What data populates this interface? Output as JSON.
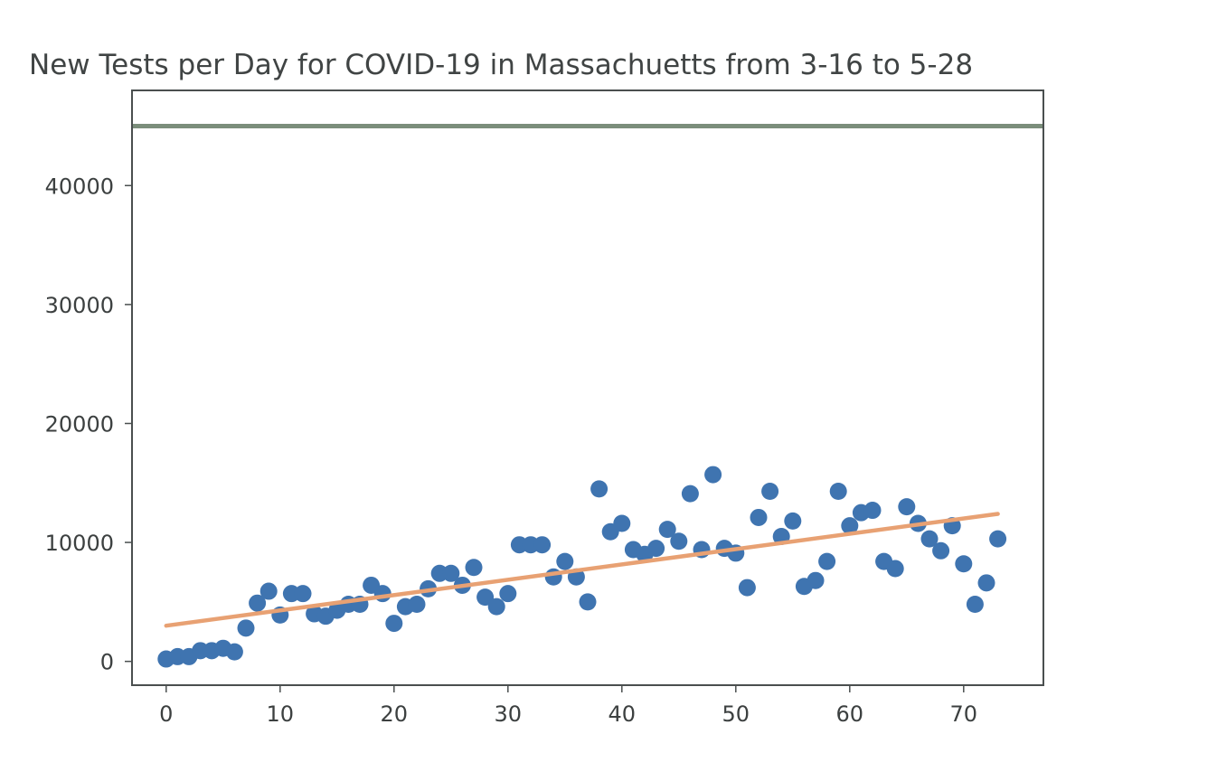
{
  "chart_data": {
    "type": "scatter",
    "title": "New Tests per Day for COVID-19 in Massachuetts from 3-16 to 5-28",
    "xlabel": "",
    "ylabel": "",
    "xlim": [
      -3,
      77
    ],
    "ylim": [
      -2000,
      48000
    ],
    "xticks": [
      0,
      10,
      20,
      30,
      40,
      50,
      60,
      70
    ],
    "yticks": [
      0,
      10000,
      20000,
      30000,
      40000
    ],
    "xtick_labels": [
      "0",
      "10",
      "20",
      "30",
      "40",
      "50",
      "60",
      "70"
    ],
    "ytick_labels": [
      "0",
      "10000",
      "20000",
      "30000",
      "40000"
    ],
    "grid": false,
    "reference_line": {
      "y": 45000,
      "color": "#7b8e7b"
    },
    "series": [
      {
        "type": "scatter",
        "color": "#3f74b0",
        "x": [
          0,
          1,
          2,
          3,
          4,
          5,
          6,
          7,
          8,
          9,
          10,
          11,
          12,
          13,
          14,
          15,
          16,
          17,
          18,
          19,
          20,
          21,
          22,
          23,
          24,
          25,
          26,
          27,
          28,
          29,
          30,
          31,
          32,
          33,
          34,
          35,
          36,
          37,
          38,
          39,
          40,
          41,
          42,
          43,
          44,
          45,
          46,
          47,
          48,
          49,
          50,
          51,
          52,
          53,
          54,
          55,
          56,
          57,
          58,
          59,
          60,
          61,
          62,
          63,
          64,
          65,
          66,
          67,
          68,
          69,
          70,
          71,
          72,
          73
        ],
        "y": [
          200,
          400,
          400,
          900,
          900,
          1100,
          800,
          2800,
          4900,
          5900,
          3900,
          5700,
          5700,
          4000,
          3800,
          4300,
          4800,
          4800,
          6400,
          5700,
          3200,
          4600,
          4800,
          6100,
          7400,
          7400,
          6400,
          7900,
          5400,
          4600,
          5700,
          9800,
          9800,
          9800,
          7100,
          8400,
          7100,
          5000,
          14500,
          10900,
          11600,
          9400,
          9000,
          9500,
          11100,
          10100,
          14100,
          9400,
          15700,
          9500,
          9100,
          6200,
          12100,
          14300,
          10500,
          11800,
          6300,
          6800,
          8400,
          14300,
          11400,
          12500,
          12700,
          8400,
          7800,
          13000,
          11600,
          10300,
          9300,
          11400,
          8200,
          4800,
          6600,
          10300
        ]
      },
      {
        "type": "line",
        "color": "#e8a173",
        "x": [
          0,
          73
        ],
        "y": [
          3000,
          12400
        ]
      }
    ]
  }
}
